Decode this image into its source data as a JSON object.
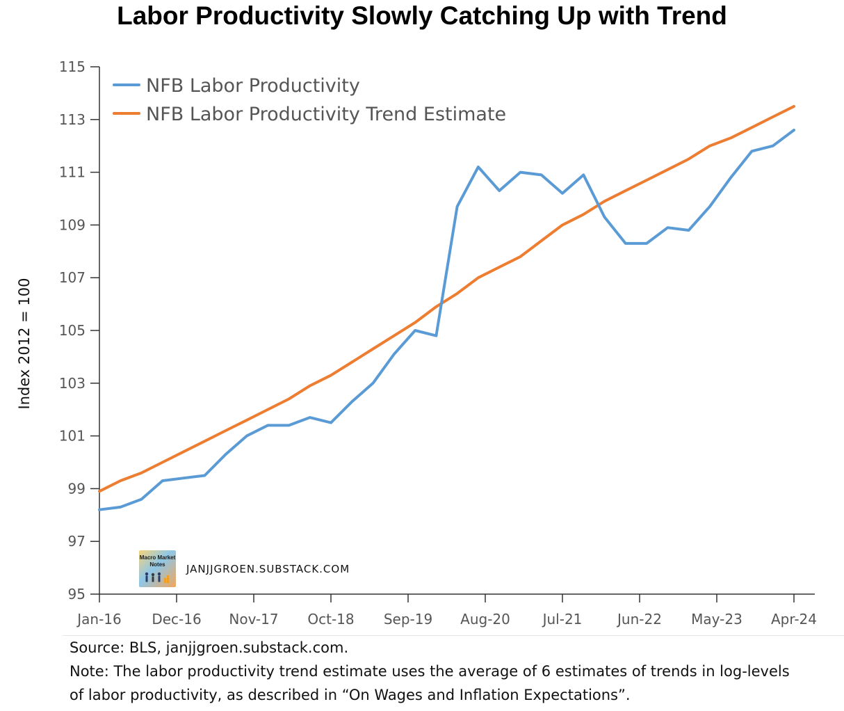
{
  "title": "Labor Productivity Slowly Catching Up with Trend",
  "watermark": {
    "logo_text": "Macro Market Notes",
    "logo_lines": [
      "Macro Market",
      "Notes"
    ],
    "site": "JANJJGROEN.SUBSTACK.COM"
  },
  "footer": {
    "source": "Source: BLS, janjjgroen.substack.com.",
    "note_line1": "Note: The labor productivity trend estimate uses the average of 6 estimates of trends in log-levels",
    "note_line2": "of labor productivity, as described in “On Wages and Inflation Expectations”."
  },
  "chart_data": {
    "type": "line",
    "title": "Labor Productivity Slowly Catching Up with Trend",
    "xlabel": "",
    "ylabel": "Index 2012 = 100",
    "ylim": [
      95,
      115
    ],
    "yticks": [
      95,
      97,
      99,
      101,
      103,
      105,
      107,
      109,
      111,
      113,
      115
    ],
    "xtick_labels": [
      "Jan-16",
      "Dec-16",
      "Nov-17",
      "Oct-18",
      "Sep-19",
      "Aug-20",
      "Jul-21",
      "Jun-22",
      "May-23",
      "Apr-24"
    ],
    "x": [
      "2016Q1",
      "2016Q2",
      "2016Q3",
      "2016Q4",
      "2017Q1",
      "2017Q2",
      "2017Q3",
      "2017Q4",
      "2018Q1",
      "2018Q2",
      "2018Q3",
      "2018Q4",
      "2019Q1",
      "2019Q2",
      "2019Q3",
      "2019Q4",
      "2020Q1",
      "2020Q2",
      "2020Q3",
      "2020Q4",
      "2021Q1",
      "2021Q2",
      "2021Q3",
      "2021Q4",
      "2022Q1",
      "2022Q2",
      "2022Q3",
      "2022Q4",
      "2023Q1",
      "2023Q2",
      "2023Q3",
      "2023Q4",
      "2024Q1",
      "2024Q2"
    ],
    "legend_position": "top-left",
    "grid": false,
    "series": [
      {
        "name": "NFB Labor Productivity",
        "color": "#5b9bd5",
        "values": [
          98.2,
          98.3,
          98.6,
          99.3,
          99.4,
          99.5,
          100.3,
          101.0,
          101.4,
          101.4,
          101.7,
          101.5,
          102.3,
          103.0,
          104.1,
          105.0,
          104.8,
          109.7,
          111.2,
          110.3,
          111.0,
          110.9,
          110.2,
          110.9,
          109.3,
          108.3,
          108.3,
          108.9,
          108.8,
          109.7,
          110.8,
          111.8,
          112.0,
          112.6
        ]
      },
      {
        "name": "NFB Labor Productivity Trend Estimate",
        "color": "#ed7d31",
        "values": [
          98.9,
          99.3,
          99.6,
          100.0,
          100.4,
          100.8,
          101.2,
          101.6,
          102.0,
          102.4,
          102.9,
          103.3,
          103.8,
          104.3,
          104.8,
          105.3,
          105.9,
          106.4,
          107.0,
          107.4,
          107.8,
          108.4,
          109.0,
          109.4,
          109.9,
          110.3,
          110.7,
          111.1,
          111.5,
          112.0,
          112.3,
          112.7,
          113.1,
          113.5
        ]
      }
    ]
  }
}
